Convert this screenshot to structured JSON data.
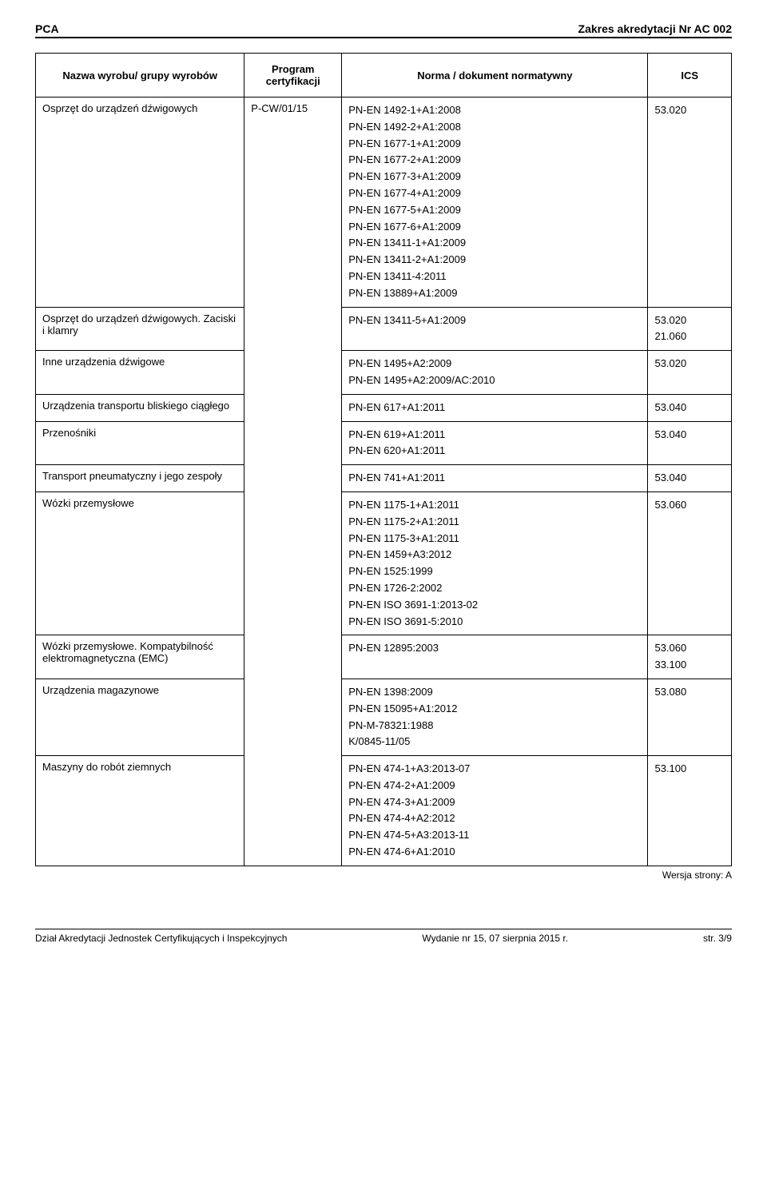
{
  "header": {
    "left": "PCA",
    "right": "Zakres akredytacji Nr AC 002"
  },
  "columns": {
    "name": "Nazwa wyrobu/ grupy wyrobów",
    "program": "Program certyfikacji",
    "norm": "Norma / dokument normatywny",
    "ics": "ICS"
  },
  "rows": [
    {
      "name": "Osprzęt do urządzeń dźwigowych",
      "program": "P-CW/01/15",
      "norms": [
        "PN-EN 1492-1+A1:2008",
        "PN-EN 1492-2+A1:2008",
        "PN-EN 1677-1+A1:2009",
        "PN-EN 1677-2+A1:2009",
        "PN-EN 1677-3+A1:2009",
        "PN-EN 1677-4+A1:2009",
        "PN-EN 1677-5+A1:2009",
        "PN-EN 1677-6+A1:2009",
        "PN-EN 13411-1+A1:2009",
        "PN-EN 13411-2+A1:2009",
        "PN-EN 13411-4:2011",
        "PN-EN 13889+A1:2009"
      ],
      "ics": [
        "53.020"
      ],
      "show_program": true,
      "rowspan_program": 11
    },
    {
      "name": "Osprzęt do urządzeń dźwigowych. Zaciski i klamry",
      "norms": [
        "PN-EN 13411-5+A1:2009"
      ],
      "ics": [
        "53.020",
        "21.060"
      ]
    },
    {
      "name": "Inne urządzenia dźwigowe",
      "norms": [
        "PN-EN 1495+A2:2009",
        "PN-EN 1495+A2:2009/AC:2010"
      ],
      "ics": [
        "53.020"
      ]
    },
    {
      "name": "Urządzenia transportu bliskiego ciągłego",
      "norms": [
        "PN-EN 617+A1:2011"
      ],
      "ics": [
        "53.040"
      ]
    },
    {
      "name": "Przenośniki",
      "norms": [
        "PN-EN 619+A1:2011",
        "PN-EN 620+A1:2011"
      ],
      "ics": [
        "53.040"
      ]
    },
    {
      "name": "Transport pneumatyczny i jego zespoły",
      "norms": [
        "PN-EN 741+A1:2011"
      ],
      "ics": [
        "53.040"
      ]
    },
    {
      "name": "Wózki przemysłowe",
      "norms": [
        "PN-EN 1175-1+A1:2011",
        "PN-EN 1175-2+A1:2011",
        "PN-EN 1175-3+A1:2011",
        "PN-EN 1459+A3:2012",
        "PN-EN 1525:1999",
        "PN-EN 1726-2:2002",
        "PN-EN ISO 3691-1:2013-02",
        "PN-EN ISO 3691-5:2010"
      ],
      "ics": [
        "53.060"
      ]
    },
    {
      "name": "Wózki przemysłowe. Kompatybilność elektromagnetyczna (EMC)",
      "norms": [
        "PN-EN 12895:2003"
      ],
      "ics": [
        "53.060",
        "33.100"
      ]
    },
    {
      "name": "Urządzenia magazynowe",
      "norms": [
        "PN-EN 1398:2009",
        "PN-EN 15095+A1:2012",
        "PN-M-78321:1988",
        "K/0845-11/05"
      ],
      "ics": [
        "53.080"
      ]
    },
    {
      "name": "Maszyny do robót ziemnych",
      "norms": [
        "PN-EN 474-1+A3:2013-07",
        "PN-EN 474-2+A1:2009",
        "PN-EN 474-3+A1:2009",
        "PN-EN 474-4+A2:2012",
        "PN-EN 474-5+A3:2013-11",
        "PN-EN 474-6+A1:2010"
      ],
      "ics": [
        "53.100"
      ]
    }
  ],
  "version_note": "Wersja strony: A",
  "footer": {
    "left": "Dział Akredytacji Jednostek Certyfikujących i Inspekcyjnych",
    "center": "Wydanie nr 15, 07 sierpnia 2015 r.",
    "right": "str. 3/9"
  }
}
